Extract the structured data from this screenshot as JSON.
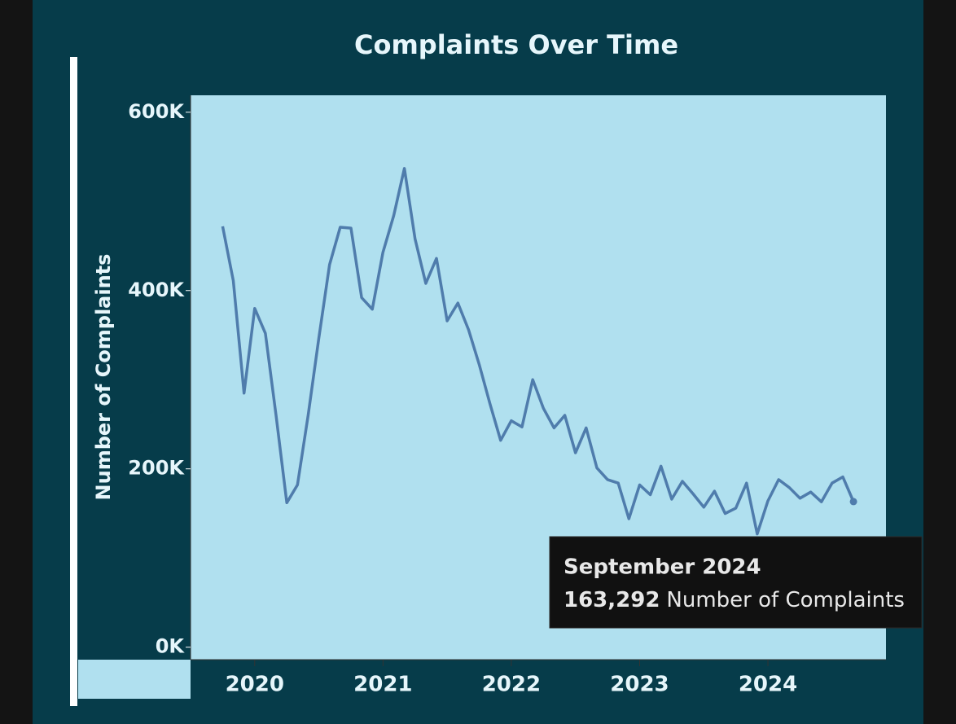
{
  "chart_data": {
    "type": "line",
    "title": "Complaints Over Time",
    "y_label": "Number of Complaints",
    "x": [
      "2019-10",
      "2019-11",
      "2019-12",
      "2020-01",
      "2020-02",
      "2020-03",
      "2020-04",
      "2020-05",
      "2020-06",
      "2020-07",
      "2020-08",
      "2020-09",
      "2020-10",
      "2020-11",
      "2020-12",
      "2021-01",
      "2021-02",
      "2021-03",
      "2021-04",
      "2021-05",
      "2021-06",
      "2021-07",
      "2021-08",
      "2021-09",
      "2021-10",
      "2021-11",
      "2021-12",
      "2022-01",
      "2022-02",
      "2022-03",
      "2022-04",
      "2022-05",
      "2022-06",
      "2022-07",
      "2022-08",
      "2022-09",
      "2022-10",
      "2022-11",
      "2022-12",
      "2023-01",
      "2023-02",
      "2023-03",
      "2023-04",
      "2023-05",
      "2023-06",
      "2023-07",
      "2023-08",
      "2023-09",
      "2023-10",
      "2023-11",
      "2023-12",
      "2024-01",
      "2024-02",
      "2024-03",
      "2024-04",
      "2024-05",
      "2024-06",
      "2024-07",
      "2024-08",
      "2024-09"
    ],
    "series": [
      {
        "name": "Number of Complaints",
        "color": "#4f7cac",
        "values": [
          472000,
          411000,
          285000,
          380000,
          352000,
          260000,
          162000,
          182000,
          260000,
          347000,
          429000,
          471000,
          470000,
          392000,
          379000,
          443000,
          484000,
          537000,
          458000,
          408000,
          436000,
          366000,
          386000,
          356000,
          317000,
          273000,
          232000,
          254000,
          247000,
          300000,
          268000,
          246000,
          260000,
          218000,
          246000,
          201000,
          188000,
          184000,
          144000,
          182000,
          171000,
          203000,
          166000,
          186000,
          172000,
          157000,
          175000,
          150000,
          156000,
          184000,
          127000,
          164000,
          188000,
          179000,
          167000,
          174000,
          163000,
          184000,
          191000,
          163292
        ]
      }
    ],
    "xlim": [
      2019.5,
      2024.92
    ],
    "xticks": [
      2020,
      2021,
      2022,
      2023,
      2024
    ],
    "ylim": [
      -14000,
      619000
    ],
    "yticks": [
      {
        "value": 0,
        "label": "0K"
      },
      {
        "value": 200000,
        "label": "200K"
      },
      {
        "value": 400000,
        "label": "400K"
      },
      {
        "value": 600000,
        "label": "600K"
      }
    ],
    "tooltip": {
      "x_label": "September 2024",
      "value_label": "163,292",
      "measure": "Number of Complaints"
    }
  }
}
